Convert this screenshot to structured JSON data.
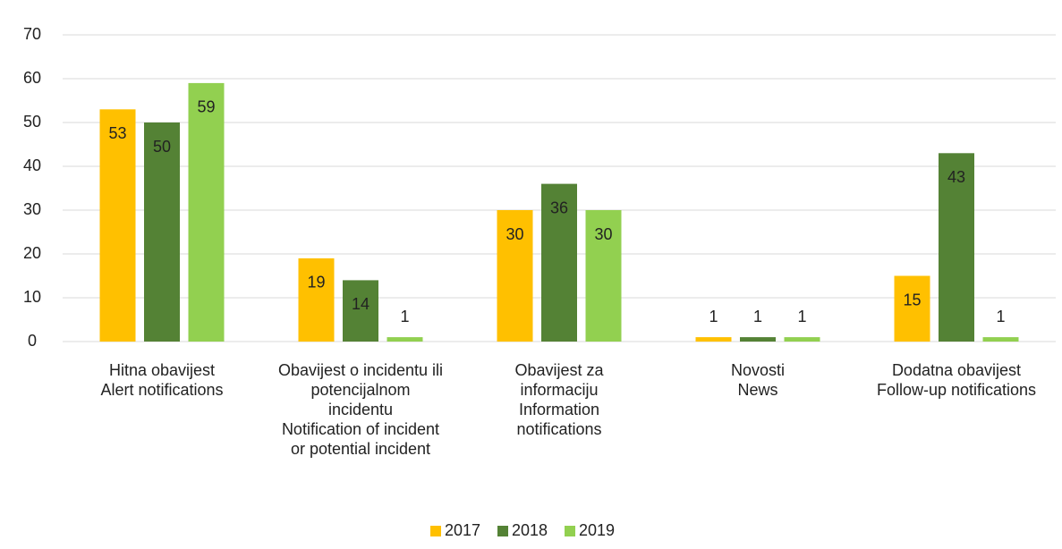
{
  "chart_data": {
    "type": "bar",
    "categories": [
      [
        "Hitna obavijest",
        "Alert notifications"
      ],
      [
        "Obavijest o incidentu ili",
        "potencijalnom",
        "incidentu",
        "Notification of incident",
        "or potential incident"
      ],
      [
        "Obavijest za",
        "informaciju",
        "Information",
        "notifications"
      ],
      [
        "Novosti",
        "News"
      ],
      [
        "Dodatna obavijest",
        "Follow-up notifications"
      ]
    ],
    "series": [
      {
        "name": "2017",
        "color": "#ffc000",
        "values": [
          53,
          19,
          30,
          1,
          15
        ]
      },
      {
        "name": "2018",
        "color": "#548235",
        "values": [
          50,
          14,
          36,
          1,
          43
        ]
      },
      {
        "name": "2019",
        "color": "#92d050",
        "values": [
          59,
          1,
          30,
          1,
          1
        ]
      }
    ],
    "ylim": [
      0,
      70
    ],
    "yticks": [
      0,
      10,
      20,
      30,
      40,
      50,
      60,
      70
    ],
    "grid": true,
    "legend": "bottom"
  }
}
